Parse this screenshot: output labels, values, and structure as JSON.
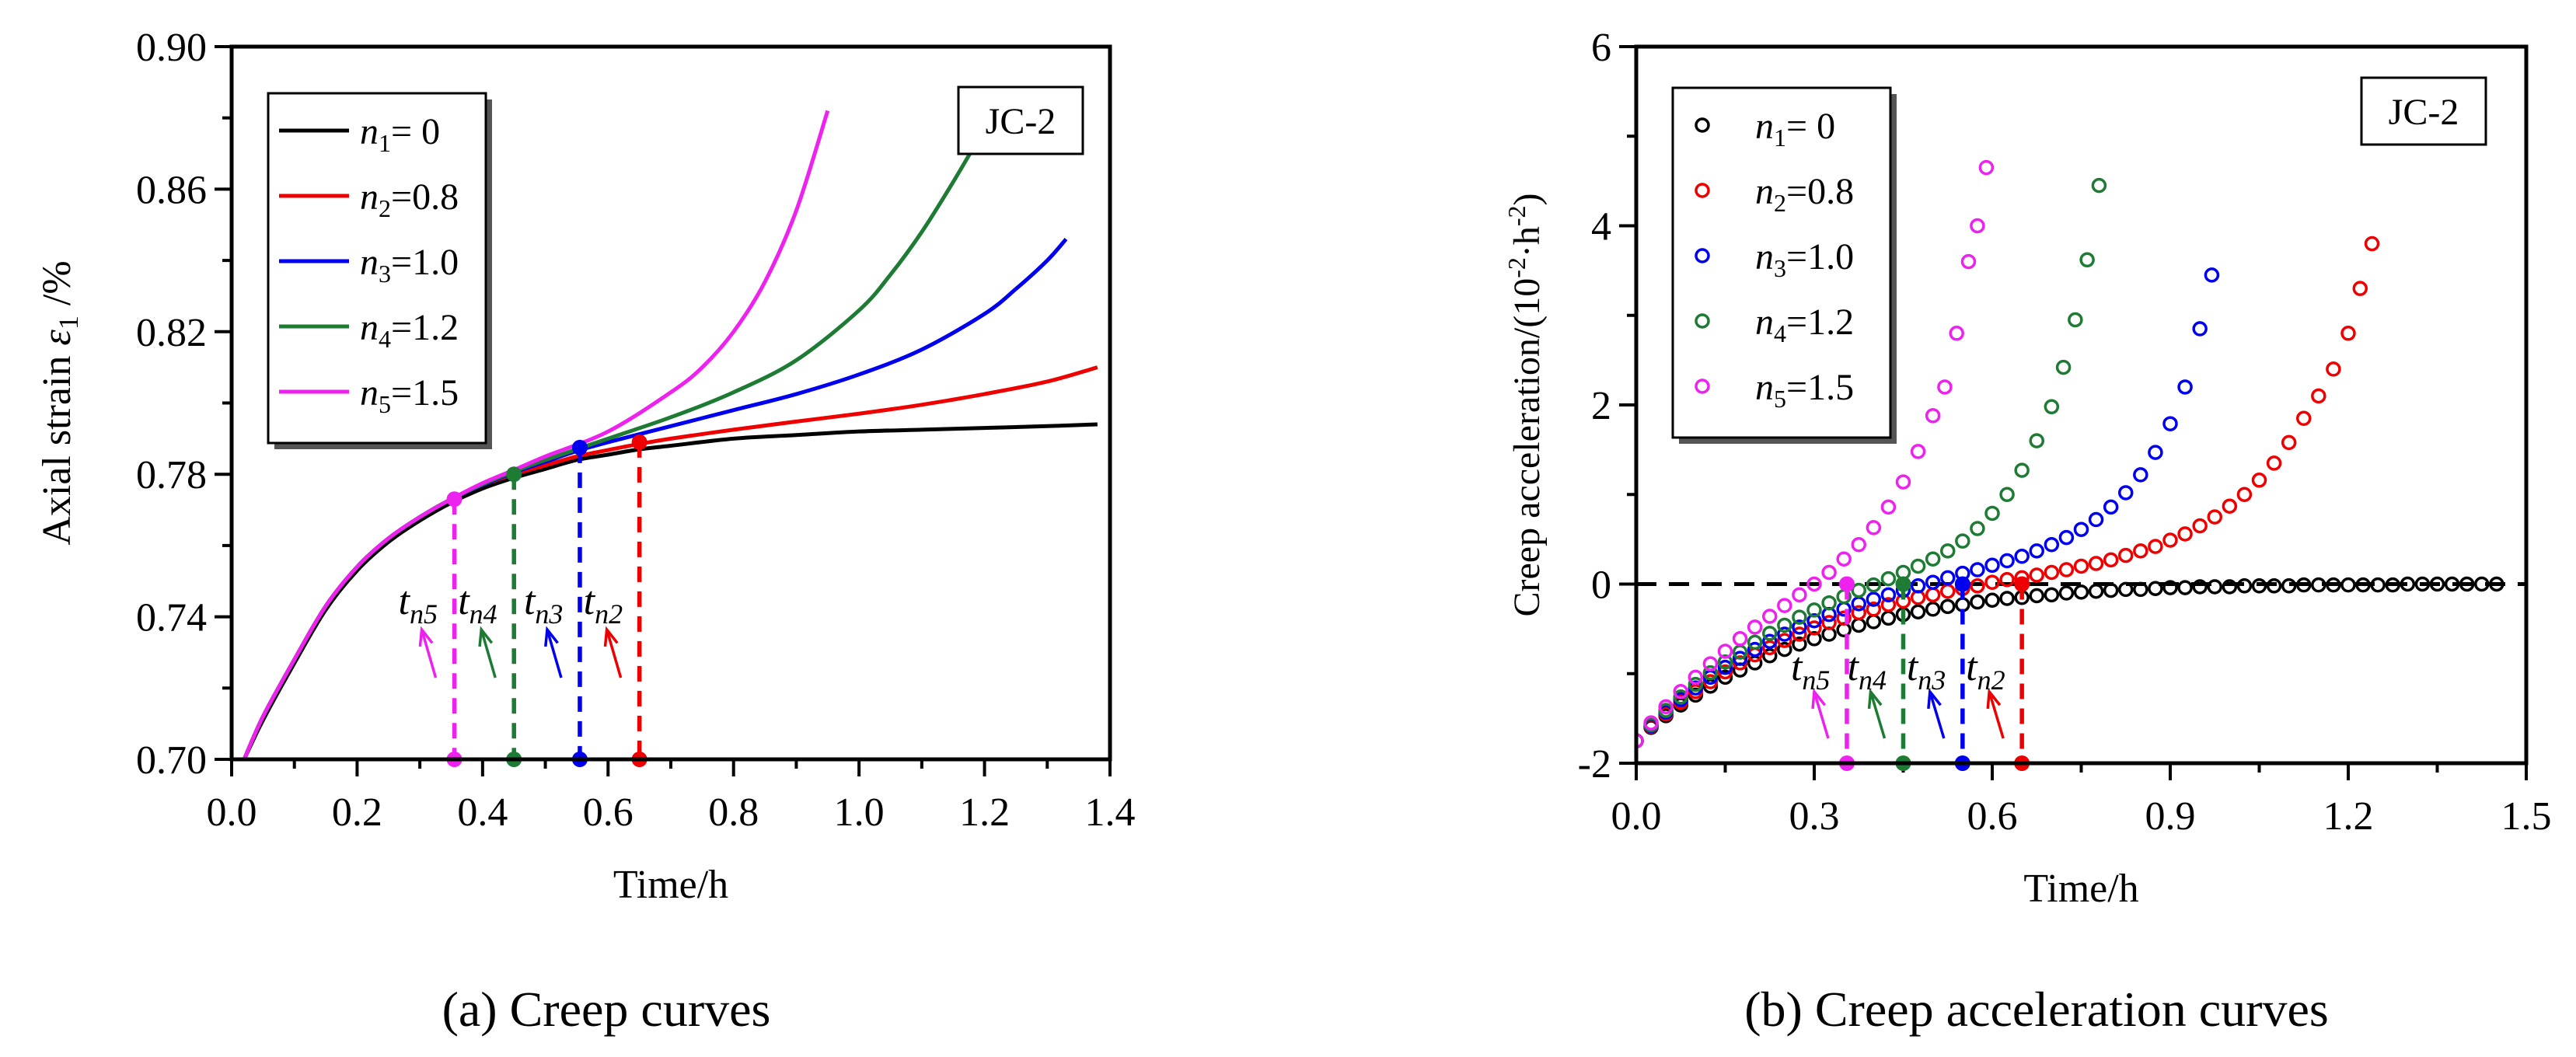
{
  "chart_data": [
    {
      "type": "line",
      "caption": "(a) Creep curves",
      "xlabel": "Time/h",
      "ylabel": {
        "main": "Axial strain ",
        "symbol": "ε",
        "sub": "1",
        "unit": " /%"
      },
      "xlim": [
        0.0,
        1.4
      ],
      "ylim": [
        0.7,
        0.9
      ],
      "xticks": [
        0.0,
        0.2,
        0.4,
        0.6,
        0.8,
        1.0,
        1.2,
        1.4
      ],
      "xtick_labels": [
        "0.0",
        "0.2",
        "0.4",
        "0.6",
        "0.8",
        "1.0",
        "1.2",
        "1.4"
      ],
      "yticks": [
        0.7,
        0.74,
        0.78,
        0.82,
        0.86,
        0.9
      ],
      "ytick_labels": [
        "0.70",
        "0.74",
        "0.78",
        "0.82",
        "0.86",
        "0.90"
      ],
      "label_box": "JC-2",
      "legend_position": "top-left",
      "series": [
        {
          "name": "n1= 0",
          "sym": "n",
          "sub": "1",
          "val": "= 0",
          "color": "#000000",
          "x": [
            0.02,
            0.05,
            0.1,
            0.15,
            0.2,
            0.25,
            0.3,
            0.35,
            0.4,
            0.45,
            0.5,
            0.55,
            0.6,
            0.65,
            0.7,
            0.8,
            0.9,
            1.0,
            1.1,
            1.2,
            1.3,
            1.38
          ],
          "y": [
            0.7,
            0.711,
            0.727,
            0.742,
            0.753,
            0.761,
            0.767,
            0.772,
            0.776,
            0.779,
            0.7815,
            0.784,
            0.7855,
            0.787,
            0.788,
            0.79,
            0.791,
            0.792,
            0.7925,
            0.793,
            0.7935,
            0.794
          ]
        },
        {
          "name": "n2=0.8",
          "sym": "n",
          "sub": "2",
          "val": "=0.8",
          "color": "#ee0000",
          "x": [
            0.02,
            0.05,
            0.1,
            0.15,
            0.2,
            0.25,
            0.3,
            0.35,
            0.4,
            0.45,
            0.5,
            0.55,
            0.6,
            0.65,
            0.7,
            0.8,
            0.9,
            1.0,
            1.1,
            1.2,
            1.3,
            1.38
          ],
          "y": [
            0.7,
            0.712,
            0.728,
            0.743,
            0.754,
            0.762,
            0.768,
            0.773,
            0.777,
            0.78,
            0.7825,
            0.785,
            0.7868,
            0.7885,
            0.79,
            0.7925,
            0.7948,
            0.797,
            0.7995,
            0.8025,
            0.806,
            0.81
          ]
        },
        {
          "name": "n3=1.0",
          "sym": "n",
          "sub": "3",
          "val": "=1.0",
          "color": "#0000ee",
          "x": [
            0.02,
            0.05,
            0.1,
            0.15,
            0.2,
            0.25,
            0.3,
            0.35,
            0.4,
            0.45,
            0.5,
            0.55,
            0.6,
            0.7,
            0.8,
            0.9,
            1.0,
            1.1,
            1.2,
            1.25,
            1.3,
            1.33
          ],
          "y": [
            0.7,
            0.712,
            0.728,
            0.743,
            0.754,
            0.762,
            0.768,
            0.773,
            0.777,
            0.7805,
            0.7835,
            0.7865,
            0.789,
            0.7935,
            0.798,
            0.8025,
            0.808,
            0.815,
            0.825,
            0.832,
            0.84,
            0.846
          ]
        },
        {
          "name": "n4=1.2",
          "sym": "n",
          "sub": "4",
          "val": "=1.2",
          "color": "#1e7b34",
          "x": [
            0.02,
            0.05,
            0.1,
            0.15,
            0.2,
            0.25,
            0.3,
            0.35,
            0.4,
            0.45,
            0.5,
            0.6,
            0.7,
            0.8,
            0.9,
            1.0,
            1.05,
            1.1,
            1.15,
            1.2
          ],
          "y": [
            0.7,
            0.712,
            0.728,
            0.743,
            0.754,
            0.762,
            0.768,
            0.773,
            0.7772,
            0.7808,
            0.784,
            0.79,
            0.796,
            0.803,
            0.812,
            0.826,
            0.836,
            0.848,
            0.862,
            0.877
          ]
        },
        {
          "name": "n5=1.5",
          "sym": "n",
          "sub": "5",
          "val": "=1.5",
          "color": "#ee22ee",
          "x": [
            0.02,
            0.05,
            0.1,
            0.15,
            0.2,
            0.25,
            0.3,
            0.35,
            0.4,
            0.45,
            0.5,
            0.6,
            0.7,
            0.75,
            0.8,
            0.85,
            0.9,
            0.95
          ],
          "y": [
            0.7,
            0.712,
            0.728,
            0.743,
            0.754,
            0.762,
            0.768,
            0.773,
            0.7775,
            0.7812,
            0.785,
            0.792,
            0.803,
            0.81,
            0.82,
            0.834,
            0.854,
            0.882
          ]
        }
      ],
      "markers": [
        {
          "label": "n5",
          "x": 0.355,
          "y": 0.773,
          "color": "#ee22ee"
        },
        {
          "label": "n4",
          "x": 0.45,
          "y": 0.78,
          "color": "#1e7b34"
        },
        {
          "label": "n3",
          "x": 0.555,
          "y": 0.7875,
          "color": "#0000ee"
        },
        {
          "label": "n2",
          "x": 0.65,
          "y": 0.789,
          "color": "#ee0000"
        }
      ]
    },
    {
      "type": "scatter",
      "caption": "(b) Creep acceleration curves",
      "xlabel": "Time/h",
      "ylabel": "Creep acceleration/(10-2·h-2)",
      "ylabel_parts": {
        "main": "Creep acceleration/(10",
        "e1": "-2",
        "mid": "·h",
        "e2": "-2",
        "end": ")"
      },
      "xlim": [
        0.0,
        1.5
      ],
      "ylim": [
        -2,
        6
      ],
      "xticks": [
        0.0,
        0.3,
        0.6,
        0.9,
        1.2,
        1.5
      ],
      "xtick_labels": [
        "0.0",
        "0.3",
        "0.6",
        "0.9",
        "1.2",
        "1.5"
      ],
      "yticks": [
        -2,
        0,
        2,
        4,
        6
      ],
      "ytick_labels": [
        "-2",
        "0",
        "2",
        "4",
        "6"
      ],
      "label_box": "JC-2",
      "legend_position": "top-left",
      "zero_line": true,
      "series": [
        {
          "name": "n1= 0",
          "sym": "n",
          "sub": "1",
          "val": "= 0",
          "color": "#000000",
          "x": [
            0.0,
            0.025,
            0.05,
            0.075,
            0.1,
            0.125,
            0.15,
            0.175,
            0.2,
            0.225,
            0.25,
            0.275,
            0.3,
            0.325,
            0.35,
            0.375,
            0.4,
            0.425,
            0.45,
            0.475,
            0.5,
            0.525,
            0.55,
            0.575,
            0.6,
            0.625,
            0.65,
            0.675,
            0.7,
            0.725,
            0.75,
            0.775,
            0.8,
            0.825,
            0.85,
            0.875,
            0.9,
            0.925,
            0.95,
            0.975,
            1.0,
            1.025,
            1.05,
            1.075,
            1.1,
            1.125,
            1.15,
            1.175,
            1.2,
            1.225,
            1.25,
            1.275,
            1.3,
            1.325,
            1.35,
            1.375,
            1.4,
            1.425,
            1.45
          ],
          "y": [
            -1.75,
            -1.6,
            -1.47,
            -1.35,
            -1.24,
            -1.14,
            -1.04,
            -0.96,
            -0.88,
            -0.8,
            -0.73,
            -0.67,
            -0.61,
            -0.56,
            -0.51,
            -0.46,
            -0.42,
            -0.38,
            -0.34,
            -0.31,
            -0.28,
            -0.25,
            -0.23,
            -0.2,
            -0.18,
            -0.16,
            -0.15,
            -0.13,
            -0.12,
            -0.1,
            -0.09,
            -0.08,
            -0.07,
            -0.06,
            -0.06,
            -0.05,
            -0.04,
            -0.04,
            -0.03,
            -0.03,
            -0.03,
            -0.02,
            -0.02,
            -0.02,
            -0.02,
            -0.01,
            -0.01,
            -0.01,
            -0.01,
            -0.01,
            -0.01,
            -0.01,
            0.0,
            0.0,
            0.0,
            0.0,
            0.0,
            0.0,
            0.0
          ]
        },
        {
          "name": "n2=0.8",
          "sym": "n",
          "sub": "2",
          "val": "=0.8",
          "color": "#ee0000",
          "x": [
            0.0,
            0.025,
            0.05,
            0.075,
            0.1,
            0.125,
            0.15,
            0.175,
            0.2,
            0.225,
            0.25,
            0.275,
            0.3,
            0.325,
            0.35,
            0.375,
            0.4,
            0.425,
            0.45,
            0.475,
            0.5,
            0.525,
            0.55,
            0.575,
            0.6,
            0.625,
            0.65,
            0.675,
            0.7,
            0.725,
            0.75,
            0.775,
            0.8,
            0.825,
            0.85,
            0.875,
            0.9,
            0.925,
            0.95,
            0.975,
            1.0,
            1.025,
            1.05,
            1.075,
            1.1,
            1.125,
            1.15,
            1.175,
            1.2,
            1.22,
            1.24
          ],
          "y": [
            -1.75,
            -1.59,
            -1.45,
            -1.32,
            -1.2,
            -1.09,
            -0.98,
            -0.88,
            -0.79,
            -0.71,
            -0.63,
            -0.56,
            -0.49,
            -0.43,
            -0.38,
            -0.32,
            -0.28,
            -0.23,
            -0.19,
            -0.15,
            -0.12,
            -0.08,
            -0.05,
            -0.02,
            0.02,
            0.05,
            0.07,
            0.1,
            0.13,
            0.16,
            0.2,
            0.23,
            0.27,
            0.32,
            0.37,
            0.42,
            0.49,
            0.56,
            0.65,
            0.75,
            0.87,
            1.0,
            1.16,
            1.35,
            1.58,
            1.85,
            2.1,
            2.4,
            2.8,
            3.3,
            3.8
          ]
        },
        {
          "name": "n3=1.0",
          "sym": "n",
          "sub": "3",
          "val": "=1.0",
          "color": "#0000ee",
          "x": [
            0.0,
            0.025,
            0.05,
            0.075,
            0.1,
            0.125,
            0.15,
            0.175,
            0.2,
            0.225,
            0.25,
            0.275,
            0.3,
            0.325,
            0.35,
            0.375,
            0.4,
            0.425,
            0.45,
            0.475,
            0.5,
            0.525,
            0.55,
            0.575,
            0.6,
            0.625,
            0.65,
            0.675,
            0.7,
            0.725,
            0.75,
            0.775,
            0.8,
            0.825,
            0.85,
            0.875,
            0.9,
            0.925,
            0.95,
            0.97
          ],
          "y": [
            -1.75,
            -1.58,
            -1.43,
            -1.29,
            -1.16,
            -1.04,
            -0.93,
            -0.83,
            -0.73,
            -0.64,
            -0.56,
            -0.48,
            -0.41,
            -0.34,
            -0.28,
            -0.22,
            -0.17,
            -0.12,
            -0.07,
            -0.02,
            0.02,
            0.07,
            0.12,
            0.16,
            0.21,
            0.26,
            0.31,
            0.37,
            0.44,
            0.52,
            0.61,
            0.72,
            0.86,
            1.02,
            1.22,
            1.47,
            1.79,
            2.2,
            2.85,
            3.45
          ]
        },
        {
          "name": "n4=1.2",
          "sym": "n",
          "sub": "4",
          "val": "=1.2",
          "color": "#1e7b34",
          "x": [
            0.0,
            0.025,
            0.05,
            0.075,
            0.1,
            0.125,
            0.15,
            0.175,
            0.2,
            0.225,
            0.25,
            0.275,
            0.3,
            0.325,
            0.35,
            0.375,
            0.4,
            0.425,
            0.45,
            0.475,
            0.5,
            0.525,
            0.55,
            0.575,
            0.6,
            0.625,
            0.65,
            0.675,
            0.7,
            0.72,
            0.74,
            0.76,
            0.78
          ],
          "y": [
            -1.75,
            -1.57,
            -1.41,
            -1.26,
            -1.12,
            -0.99,
            -0.87,
            -0.76,
            -0.65,
            -0.55,
            -0.46,
            -0.37,
            -0.29,
            -0.21,
            -0.14,
            -0.07,
            -0.01,
            0.06,
            0.13,
            0.2,
            0.28,
            0.37,
            0.48,
            0.62,
            0.79,
            1.0,
            1.27,
            1.6,
            1.98,
            2.42,
            2.95,
            3.62,
            4.45
          ]
        },
        {
          "name": "n5=1.5",
          "sym": "n",
          "sub": "5",
          "val": "=1.5",
          "color": "#ee22ee",
          "x": [
            0.0,
            0.025,
            0.05,
            0.075,
            0.1,
            0.125,
            0.15,
            0.175,
            0.2,
            0.225,
            0.25,
            0.275,
            0.3,
            0.325,
            0.35,
            0.375,
            0.4,
            0.425,
            0.45,
            0.475,
            0.5,
            0.52,
            0.54,
            0.56,
            0.575,
            0.59
          ],
          "y": [
            -1.75,
            -1.55,
            -1.37,
            -1.2,
            -1.04,
            -0.89,
            -0.75,
            -0.61,
            -0.48,
            -0.36,
            -0.24,
            -0.12,
            0.0,
            0.13,
            0.28,
            0.44,
            0.63,
            0.86,
            1.14,
            1.48,
            1.88,
            2.2,
            2.8,
            3.6,
            4.0,
            4.65
          ]
        }
      ],
      "markers": [
        {
          "label": "n5",
          "x": 0.355,
          "y": 0.0,
          "color": "#ee22ee"
        },
        {
          "label": "n4",
          "x": 0.45,
          "y": 0.0,
          "color": "#1e7b34"
        },
        {
          "label": "n3",
          "x": 0.55,
          "y": 0.0,
          "color": "#0000ee"
        },
        {
          "label": "n2",
          "x": 0.65,
          "y": 0.0,
          "color": "#ee0000"
        }
      ]
    }
  ]
}
